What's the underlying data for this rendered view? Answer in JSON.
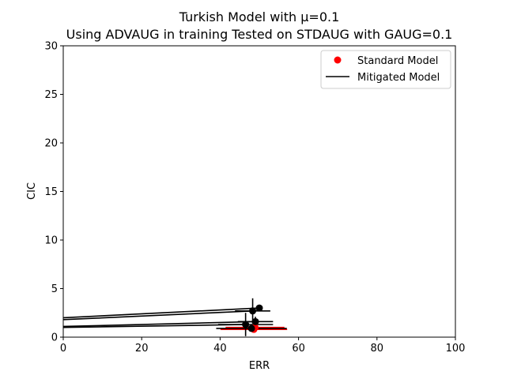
{
  "chart_data": {
    "type": "scatter",
    "title_lines": [
      "Turkish Model with μ=0.1",
      "Using ADVAUG in training Tested on STDAUG with GAUG=0.1"
    ],
    "xlabel": "ERR",
    "ylabel": "CIC",
    "xlim": [
      0,
      100
    ],
    "ylim": [
      0,
      30
    ],
    "xticks": [
      0,
      20,
      40,
      60,
      80,
      100
    ],
    "yticks": [
      0,
      5,
      10,
      15,
      20,
      25,
      30
    ],
    "grid": false,
    "legend_position": "top-right",
    "legend": [
      {
        "label": "Standard Model",
        "kind": "marker",
        "color": "#ff0000"
      },
      {
        "label": "Mitigated Model",
        "kind": "line",
        "color": "#000000"
      }
    ],
    "series": [
      {
        "name": "Standard Model",
        "color": "#ff0000",
        "points": [
          {
            "x": 48.6,
            "y": 0.8,
            "xerr": 8.5,
            "yerr": 0.2
          },
          {
            "x": 48.9,
            "y": 1.0,
            "xerr": 7.5,
            "yerr": 0.2
          }
        ]
      },
      {
        "name": "Mitigated Model",
        "color": "#000000",
        "points": [
          {
            "x": 50.0,
            "y": 3.0,
            "xerr": 0,
            "yerr": 0.1
          },
          {
            "x": 48.3,
            "y": 2.7,
            "xerr": 4.5,
            "yerr": 1.3
          },
          {
            "x": 49.0,
            "y": 1.6,
            "xerr": 4.5,
            "yerr": 0.5
          },
          {
            "x": 46.5,
            "y": 1.3,
            "xerr": 7.0,
            "yerr": 1.2
          },
          {
            "x": 48.0,
            "y": 0.9,
            "xerr": 9.0,
            "yerr": 0.3
          }
        ],
        "trend_lines": [
          {
            "x0": 0,
            "y0": 2.0,
            "x1": 50.0,
            "y1": 3.0
          },
          {
            "x0": 0,
            "y0": 1.8,
            "x1": 48.3,
            "y1": 2.7
          },
          {
            "x0": 0,
            "y0": 1.1,
            "x1": 49.0,
            "y1": 1.6
          },
          {
            "x0": 0,
            "y0": 1.0,
            "x1": 46.5,
            "y1": 1.3
          }
        ]
      }
    ]
  }
}
